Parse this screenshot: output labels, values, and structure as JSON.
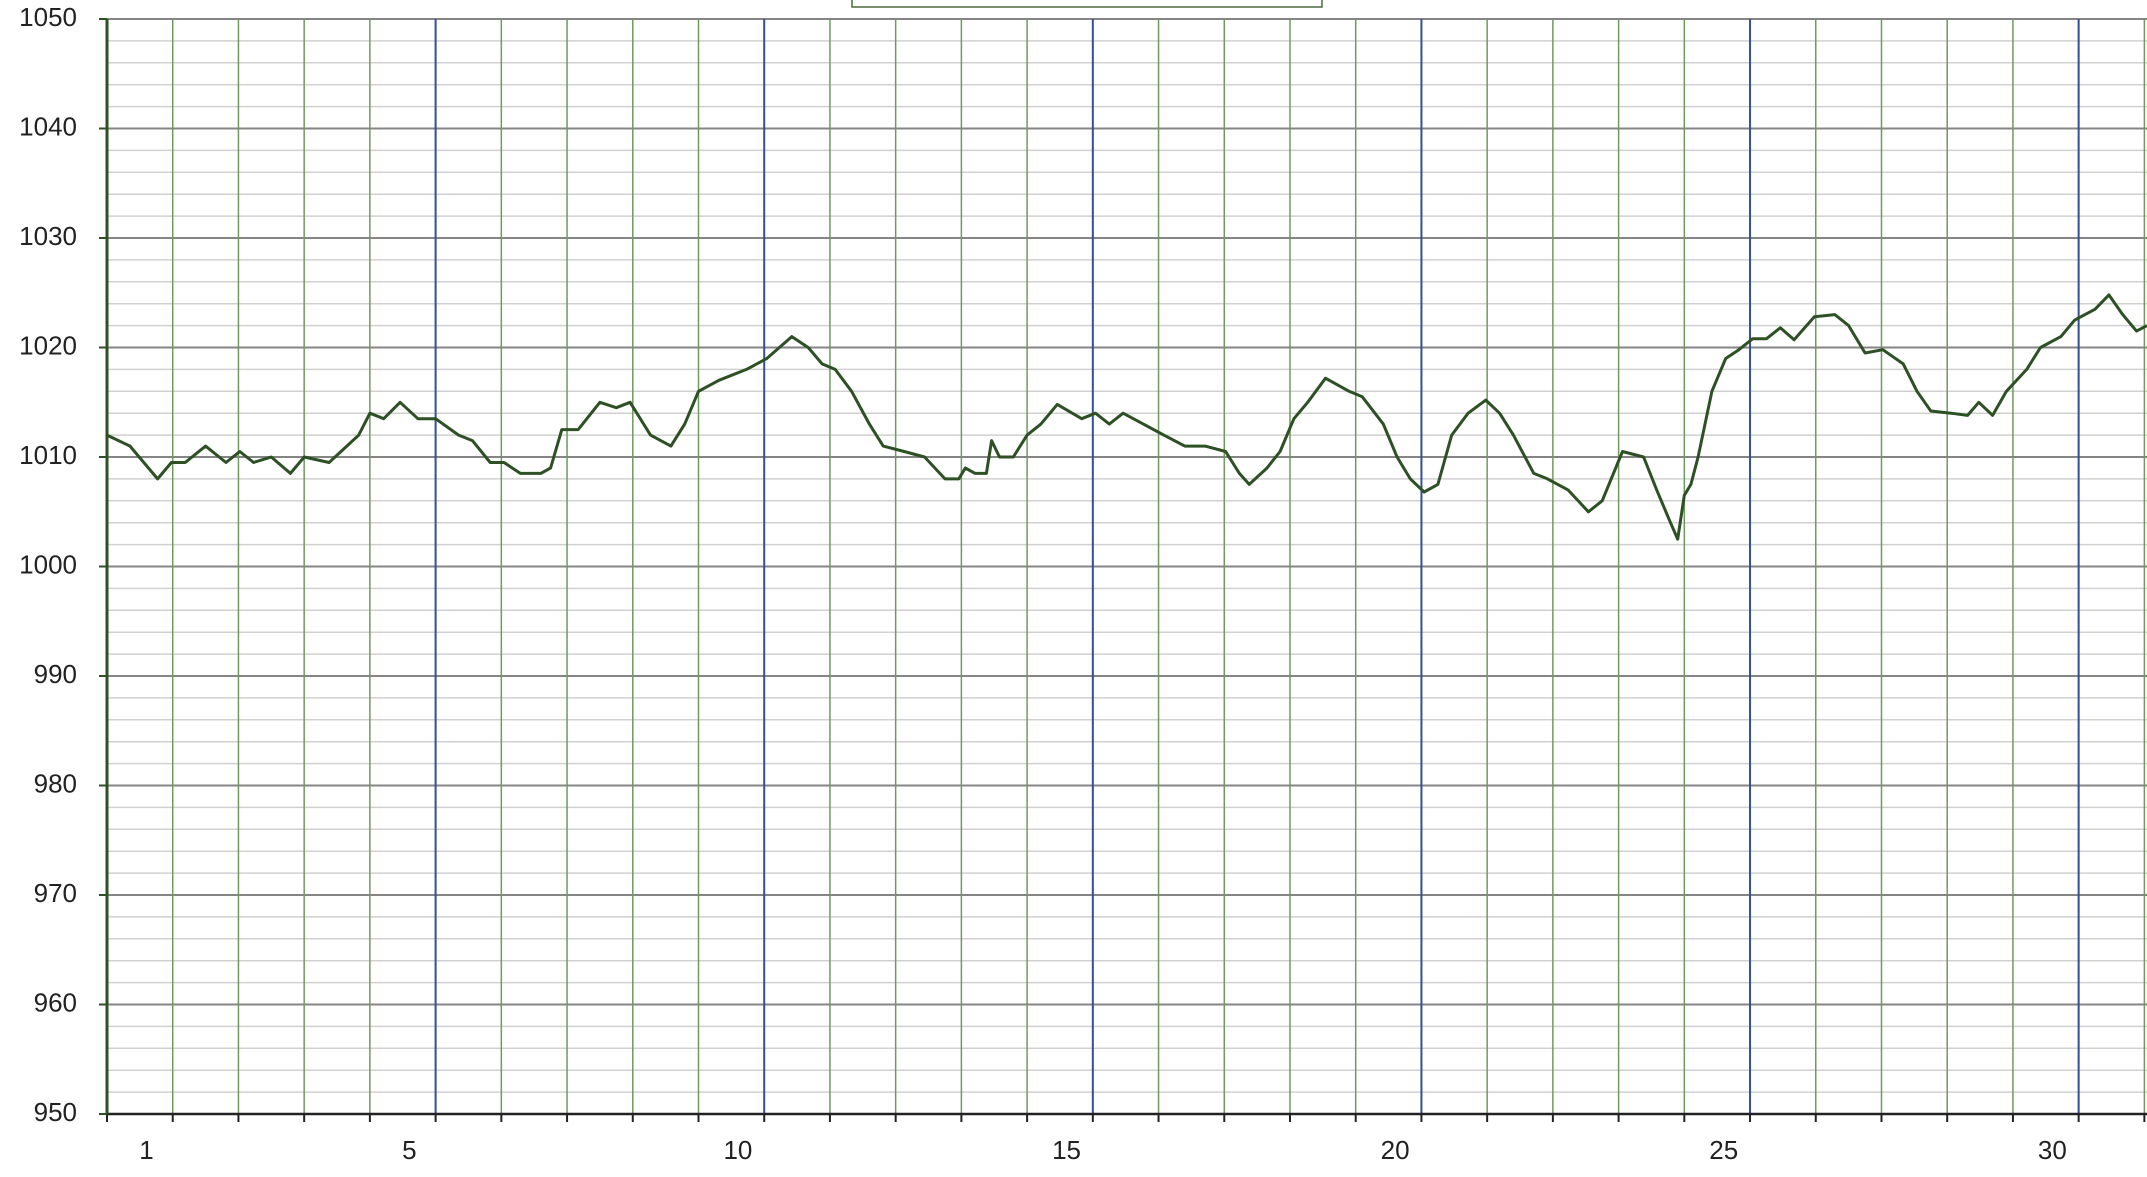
{
  "chart_data": {
    "type": "line",
    "color": "#2d5025",
    "x": [
      0.4,
      0.75,
      0.96,
      1.17,
      1.38,
      1.59,
      1.9,
      2.21,
      2.42,
      2.63,
      2.9,
      3.19,
      3.4,
      3.78,
      4.23,
      4.4,
      4.61,
      4.86,
      5.13,
      5.4,
      5.75,
      5.96,
      6.23,
      6.44,
      6.69,
      7.0,
      7.15,
      7.32,
      7.57,
      7.9,
      8.15,
      8.36,
      8.67,
      8.98,
      9.19,
      9.4,
      9.71,
      10.13,
      10.44,
      10.82,
      11.07,
      11.28,
      11.48,
      11.73,
      12.0,
      12.21,
      12.53,
      12.84,
      13.15,
      13.36,
      13.46,
      13.61,
      13.78,
      13.86,
      13.98,
      14.19,
      14.4,
      14.61,
      14.86,
      15.23,
      15.44,
      15.65,
      15.86,
      16.17,
      16.48,
      16.8,
      17.11,
      17.42,
      17.63,
      17.78,
      18.05,
      18.25,
      18.46,
      18.67,
      18.94,
      19.3,
      19.5,
      19.82,
      20.03,
      20.23,
      20.44,
      20.65,
      20.86,
      21.11,
      21.38,
      21.59,
      21.8,
      22.11,
      22.32,
      22.63,
      22.94,
      23.15,
      23.46,
      23.78,
      23.98,
      24.19,
      24.3,
      24.4,
      24.5,
      24.61,
      24.82,
      25.03,
      25.23,
      25.44,
      25.65,
      25.86,
      26.07,
      26.38,
      26.69,
      26.9,
      27.15,
      27.42,
      27.73,
      27.94,
      28.15,
      28.46,
      28.71,
      28.88,
      29.09,
      29.3,
      29.61,
      29.82,
      30.13,
      30.34,
      30.65,
      30.86,
      31.07,
      31.28,
      31.44
    ],
    "values": [
      1012,
      1011,
      1009.5,
      1008,
      1009.5,
      1009.5,
      1011,
      1009.5,
      1010.5,
      1009.5,
      1010,
      1008.5,
      1010,
      1009.5,
      1012,
      1014,
      1013.5,
      1015,
      1013.5,
      1013.5,
      1012,
      1011.5,
      1009.5,
      1009.5,
      1008.5,
      1008.5,
      1009,
      1012.5,
      1012.5,
      1015,
      1014.5,
      1015,
      1012,
      1011,
      1013,
      1016,
      1017,
      1018,
      1019,
      1021,
      1020,
      1018.5,
      1018,
      1016,
      1013,
      1011,
      1010.5,
      1010,
      1008,
      1008,
      1009,
      1008.5,
      1008.5,
      1011.5,
      1010,
      1010,
      1012,
      1013,
      1014.8,
      1013.5,
      1014,
      1013,
      1014,
      1013,
      1012,
      1011,
      1011,
      1010.5,
      1008.5,
      1007.5,
      1009,
      1010.5,
      1013.5,
      1015,
      1017.2,
      1016,
      1015.5,
      1013,
      1010,
      1008,
      1006.8,
      1007.5,
      1012,
      1014,
      1015.2,
      1014,
      1012,
      1008.5,
      1008,
      1007,
      1005,
      1006,
      1010.5,
      1010,
      1007,
      1004,
      1002.5,
      1006.5,
      1007.5,
      1010,
      1016,
      1019,
      1019.8,
      1020.8,
      1020.8,
      1021.8,
      1020.7,
      1022.8,
      1023,
      1022,
      1019.5,
      1019.8,
      1018.5,
      1016,
      1014.2,
      1014,
      1013.8,
      1015,
      1013.8,
      1016,
      1018,
      1020,
      1021,
      1022.5,
      1023.5,
      1024.8,
      1023,
      1021.5,
      1022
    ],
    "xlim": [
      0.4,
      31.44
    ],
    "xticks": [
      1,
      5,
      10,
      15,
      20,
      25,
      30
    ],
    "x_gridlines": [
      0.4,
      1.4,
      2.4,
      3.4,
      4.4,
      5.4,
      6.4,
      7.4,
      8.4,
      9.4,
      10.4,
      11.4,
      12.4,
      13.4,
      14.4,
      15.4,
      16.4,
      17.4,
      18.4,
      19.4,
      20.4,
      21.4,
      22.4,
      23.4,
      24.4,
      25.4,
      26.4,
      27.4,
      28.4,
      29.4,
      30.4,
      31.4
    ],
    "x_major_gridlines": [
      5.4,
      10.4,
      15.4,
      20.4,
      25.4,
      30.4
    ],
    "ylim": [
      950,
      1050
    ],
    "yticks": [
      950,
      960,
      970,
      980,
      990,
      1000,
      1010,
      1020,
      1030,
      1040,
      1050
    ],
    "y_minor_gridlines": [
      952,
      954,
      956,
      958,
      962,
      964,
      966,
      968,
      972,
      974,
      976,
      978,
      982,
      984,
      986,
      988,
      992,
      994,
      996,
      998,
      1002,
      1004,
      1006,
      1008,
      1012,
      1014,
      1016,
      1018,
      1022,
      1024,
      1026,
      1028,
      1032,
      1034,
      1036,
      1038,
      1042,
      1044,
      1046,
      1048
    ],
    "grid": true
  }
}
